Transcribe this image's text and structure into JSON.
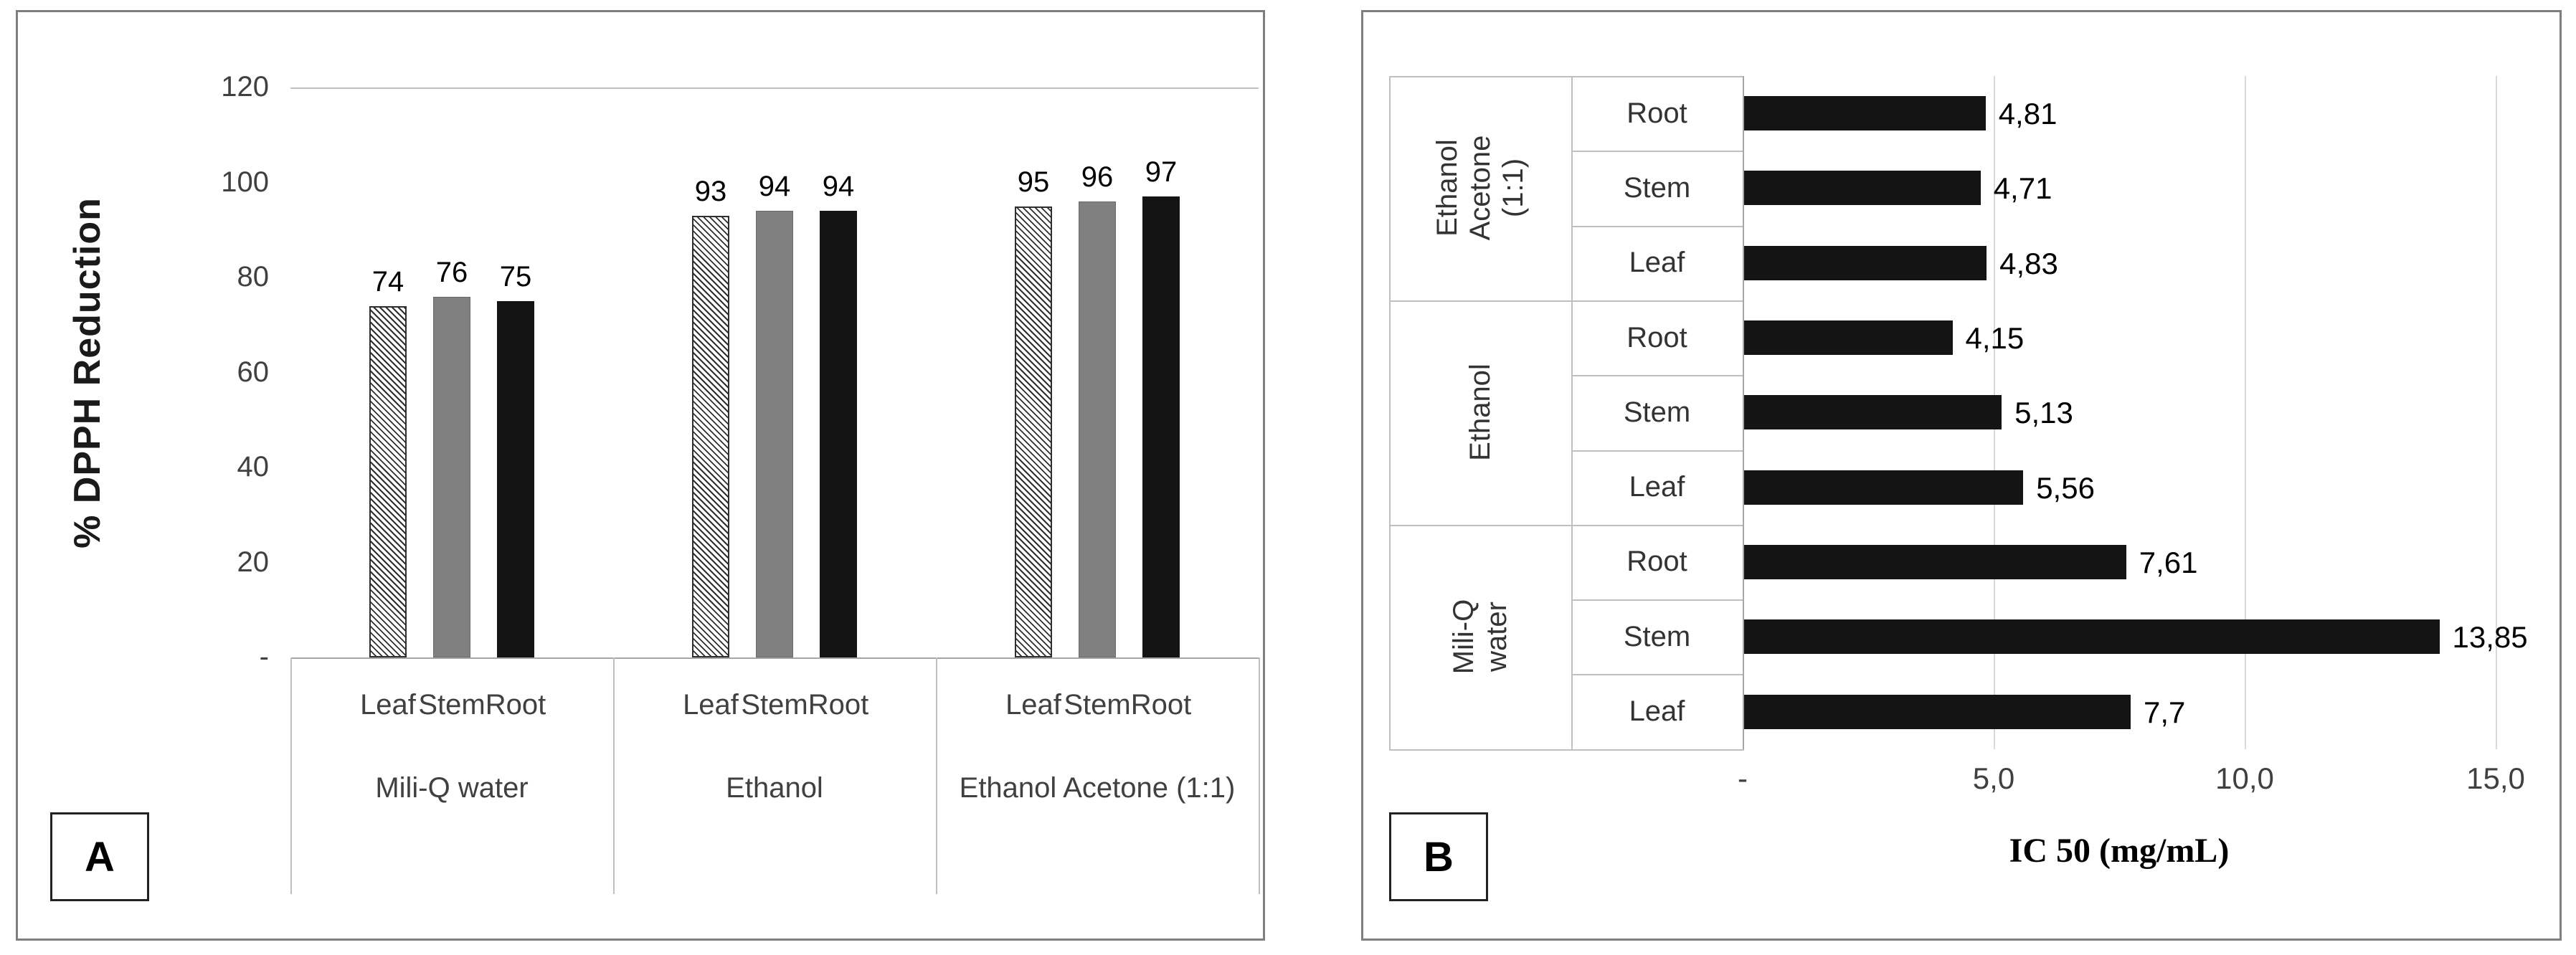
{
  "figure": {
    "background": "#ffffff",
    "panel_border_color": "#7f7f7f",
    "gridline_color": "#bfbfbf",
    "text_color": "#404040"
  },
  "chart_data": [
    {
      "id": "panel-a",
      "panel_label": "A",
      "type": "bar",
      "ylabel": "% DPPH Reduction",
      "ylim": [
        0,
        120
      ],
      "ytick_values": [
        120,
        100,
        80,
        60,
        40,
        20,
        0
      ],
      "ytick_labels": [
        "120",
        "100",
        "80",
        "60",
        "40",
        "20",
        "-"
      ],
      "categories": [
        "Leaf",
        "Stem",
        "Root"
      ],
      "bar_styles": {
        "Leaf": "hatch",
        "Stem": "gray",
        "Root": "black"
      },
      "series": [
        {
          "group": "Mili-Q water",
          "values": [
            74,
            76,
            75
          ]
        },
        {
          "group": "Ethanol",
          "values": [
            93,
            94,
            94
          ]
        },
        {
          "group": "Ethanol Acetone (1:1)",
          "values": [
            95,
            96,
            97
          ]
        }
      ],
      "colors": {
        "hatch_fg": "#2f2f2f",
        "gray": "#808080",
        "black": "#141414"
      },
      "grid": "top-gridline-and-baseline",
      "legend": "none"
    },
    {
      "id": "panel-b",
      "panel_label": "B",
      "type": "horizontal-bar",
      "xlabel": "IC 50 (mg/mL)",
      "xlim": [
        0,
        15
      ],
      "xtick_values": [
        0,
        5,
        10,
        15
      ],
      "xtick_labels": [
        "-",
        "5,0",
        "10,0",
        "15,0"
      ],
      "bar_color": "#141414",
      "groups": [
        {
          "label": "Ethanol Acetone (1:1)",
          "rows": [
            {
              "part": "Root",
              "value": 4.81,
              "label": "4,81"
            },
            {
              "part": "Stem",
              "value": 4.71,
              "label": "4,71"
            },
            {
              "part": "Leaf",
              "value": 4.83,
              "label": "4,83"
            }
          ]
        },
        {
          "label": "Ethanol",
          "rows": [
            {
              "part": "Root",
              "value": 4.15,
              "label": "4,15"
            },
            {
              "part": "Stem",
              "value": 5.13,
              "label": "5,13"
            },
            {
              "part": "Leaf",
              "value": 5.56,
              "label": "5,56"
            }
          ]
        },
        {
          "label": "Mili-Q water",
          "rows": [
            {
              "part": "Root",
              "value": 7.61,
              "label": "7,61"
            },
            {
              "part": "Stem",
              "value": 13.85,
              "label": "13,85"
            },
            {
              "part": "Leaf",
              "value": 7.7,
              "label": "7,7"
            }
          ]
        }
      ],
      "grid": "vertical-gridlines",
      "legend": "none"
    }
  ]
}
